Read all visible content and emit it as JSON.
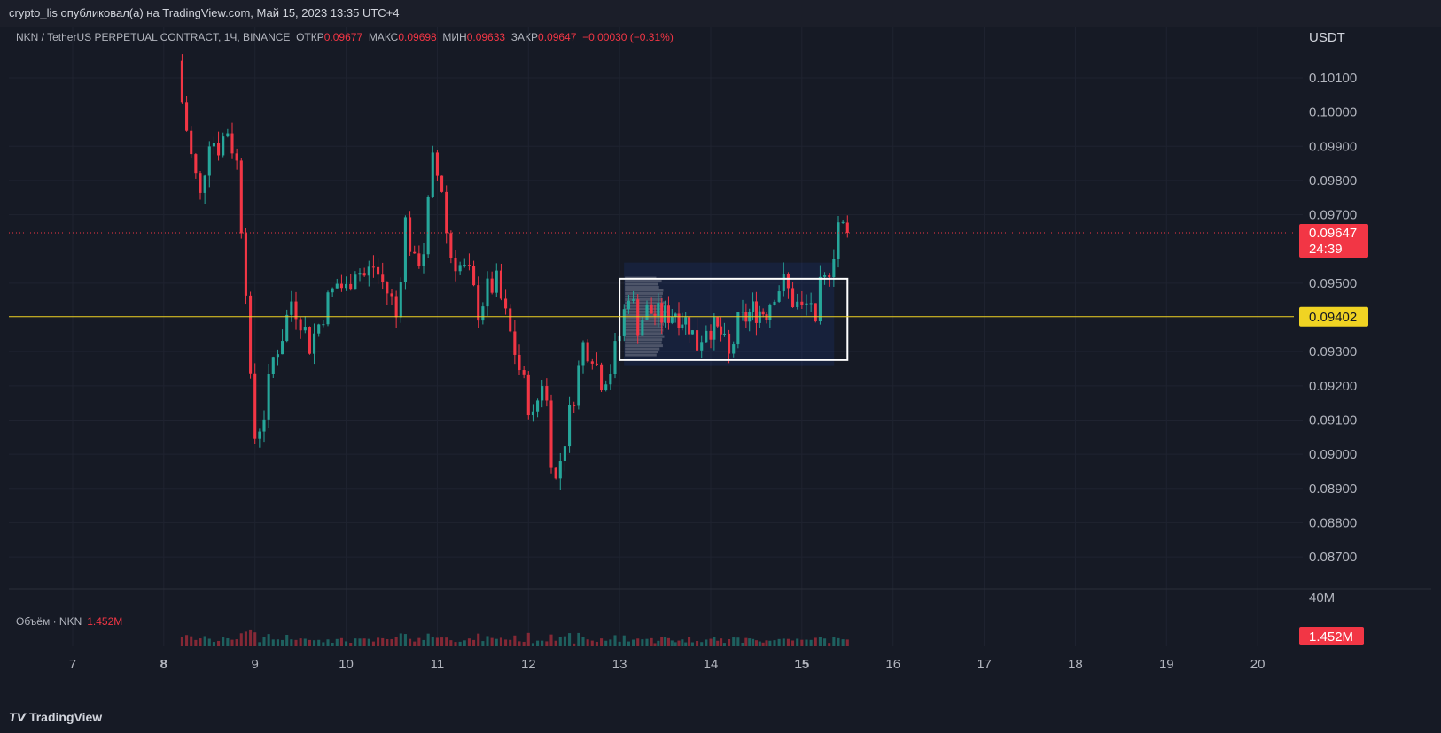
{
  "header": {
    "publisher_line": "crypto_lis опубликовал(а) на TradingView.com, Май 15, 2023 13:35 UTC+4"
  },
  "legend": {
    "symbol": "NKN / TetherUS PERPETUAL CONTRACT, 1Ч, BINANCE",
    "open_label": "ОТКР",
    "open": "0.09677",
    "high_label": "МАКС",
    "high": "0.09698",
    "low_label": "МИН",
    "low": "0.09633",
    "close_label": "ЗАКР",
    "close": "0.09647",
    "change": "−0.00030 (−0.31%)"
  },
  "volume_legend": {
    "label": "Объём · NKN",
    "value": "1.452M"
  },
  "price_axis": {
    "currency": "USDT",
    "ticks": [
      "0.10100",
      "0.10000",
      "0.09900",
      "0.09800",
      "0.09700",
      "0.09500",
      "0.09300",
      "0.09200",
      "0.09100",
      "0.09000",
      "0.08900",
      "0.08800",
      "0.08700"
    ],
    "last_price_tag": "0.09647",
    "countdown": "24:39",
    "hline_tag": "0.09402",
    "volume_tick": "40M",
    "volume_tag": "1.452M"
  },
  "time_axis": {
    "ticks": [
      "7",
      "8",
      "9",
      "10",
      "11",
      "12",
      "13",
      "14",
      "15",
      "16",
      "17",
      "18",
      "19",
      "20"
    ],
    "bold": [
      "8",
      "15"
    ]
  },
  "branding": {
    "name": "TradingView"
  },
  "colors": {
    "up": "#26a69a",
    "down": "#f23645",
    "hline": "#f0d323",
    "background": "#161a25"
  },
  "chart_data": {
    "type": "candlestick",
    "title": "NKN / TetherUS PERPETUAL CONTRACT, 1Ч, BINANCE",
    "ylim": [
      0.0862,
      0.1025
    ],
    "x_range_days": [
      6.3,
      20.3
    ],
    "horizontal_line": 0.09402,
    "last_price": 0.09647,
    "range_box": {
      "x_start_day": 13.0,
      "x_end_day": 15.5,
      "y_top": 0.09513,
      "y_bottom": 0.09275
    },
    "anchors": [
      [
        8.2,
        0.1015
      ],
      [
        8.25,
        0.1003
      ],
      [
        8.35,
        0.0987
      ],
      [
        8.45,
        0.0975
      ],
      [
        8.55,
        0.0993
      ],
      [
        8.65,
        0.099
      ],
      [
        8.75,
        0.0995
      ],
      [
        8.85,
        0.0985
      ],
      [
        8.95,
        0.095
      ],
      [
        9.0,
        0.092
      ],
      [
        9.05,
        0.0905
      ],
      [
        9.15,
        0.0912
      ],
      [
        9.25,
        0.0928
      ],
      [
        9.35,
        0.0935
      ],
      [
        9.45,
        0.0945
      ],
      [
        9.55,
        0.094
      ],
      [
        9.65,
        0.0932
      ],
      [
        9.75,
        0.0938
      ],
      [
        9.85,
        0.0945
      ],
      [
        9.95,
        0.095
      ],
      [
        10.05,
        0.0948
      ],
      [
        10.15,
        0.0955
      ],
      [
        10.25,
        0.0952
      ],
      [
        10.35,
        0.0955
      ],
      [
        10.45,
        0.095
      ],
      [
        10.55,
        0.0945
      ],
      [
        10.6,
        0.094
      ],
      [
        10.7,
        0.0968
      ],
      [
        10.8,
        0.0955
      ],
      [
        10.9,
        0.096
      ],
      [
        11.0,
        0.0985
      ],
      [
        11.1,
        0.0978
      ],
      [
        11.15,
        0.0965
      ],
      [
        11.2,
        0.0958
      ],
      [
        11.3,
        0.0955
      ],
      [
        11.4,
        0.0952
      ],
      [
        11.5,
        0.0942
      ],
      [
        11.6,
        0.0948
      ],
      [
        11.7,
        0.095
      ],
      [
        11.8,
        0.094
      ],
      [
        11.9,
        0.093
      ],
      [
        12.0,
        0.092
      ],
      [
        12.1,
        0.091
      ],
      [
        12.2,
        0.0922
      ],
      [
        12.25,
        0.0915
      ],
      [
        12.3,
        0.09
      ],
      [
        12.35,
        0.0892
      ],
      [
        12.45,
        0.0905
      ],
      [
        12.55,
        0.0918
      ],
      [
        12.65,
        0.0932
      ],
      [
        12.75,
        0.093
      ],
      [
        12.85,
        0.0922
      ],
      [
        12.95,
        0.0925
      ],
      [
        13.05,
        0.0935
      ],
      [
        13.15,
        0.0948
      ],
      [
        13.25,
        0.0938
      ],
      [
        13.35,
        0.0942
      ],
      [
        13.5,
        0.094
      ],
      [
        13.65,
        0.0942
      ],
      [
        13.8,
        0.0938
      ],
      [
        13.9,
        0.0932
      ],
      [
        14.0,
        0.0938
      ],
      [
        14.15,
        0.0935
      ],
      [
        14.25,
        0.0928
      ],
      [
        14.35,
        0.0938
      ],
      [
        14.5,
        0.0942
      ],
      [
        14.65,
        0.0942
      ],
      [
        14.75,
        0.0948
      ],
      [
        14.85,
        0.095
      ],
      [
        14.95,
        0.0945
      ],
      [
        15.05,
        0.0942
      ],
      [
        15.15,
        0.0945
      ],
      [
        15.2,
        0.0935
      ],
      [
        15.25,
        0.0948
      ],
      [
        15.3,
        0.095
      ],
      [
        15.35,
        0.0955
      ],
      [
        15.4,
        0.096
      ],
      [
        15.45,
        0.0968
      ],
      [
        15.5,
        0.0966
      ],
      [
        15.55,
        0.09647
      ]
    ]
  }
}
